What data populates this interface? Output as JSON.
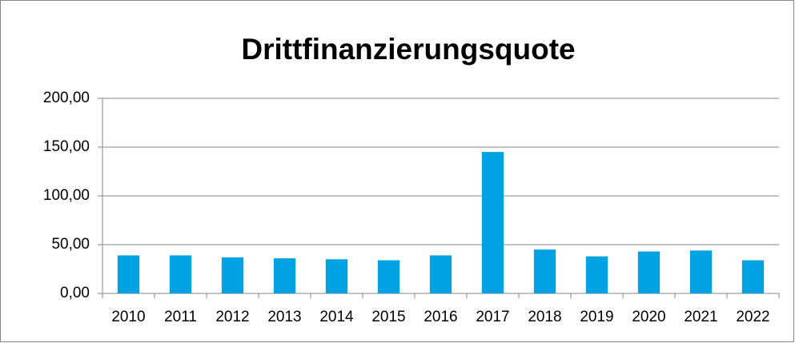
{
  "chart_data": {
    "type": "bar",
    "title": "Drittfinanzierungsquote",
    "categories": [
      "2010",
      "2011",
      "2012",
      "2013",
      "2014",
      "2015",
      "2016",
      "2017",
      "2018",
      "2019",
      "2020",
      "2021",
      "2022"
    ],
    "values": [
      39,
      39,
      37,
      36,
      35,
      34,
      39,
      145,
      45,
      38,
      43,
      44,
      34
    ],
    "color": "#00a2e3",
    "ylim": [
      0,
      200
    ],
    "yticks": [
      {
        "value": 0,
        "label": "0,00"
      },
      {
        "value": 50,
        "label": "50,00"
      },
      {
        "value": 100,
        "label": "100,00"
      },
      {
        "value": 150,
        "label": "150,00"
      },
      {
        "value": 200,
        "label": "200,00"
      }
    ],
    "grid": true
  }
}
